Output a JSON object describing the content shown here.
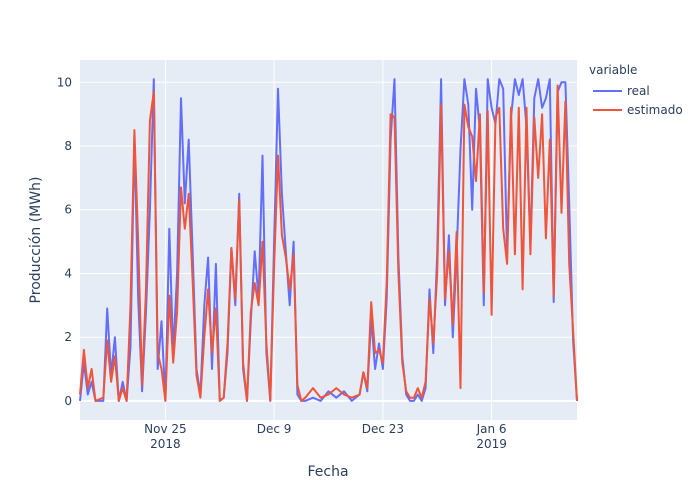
{
  "chart_data": {
    "type": "line",
    "xlabel": "Fecha",
    "ylabel": "Producción (MWh)",
    "ylim": [
      -0.6,
      10.7
    ],
    "y_ticks": [
      0,
      2,
      4,
      6,
      8,
      10
    ],
    "x_range": [
      "2018-11-14",
      "2019-01-17"
    ],
    "x_ticks": [
      {
        "date": "2018-11-25",
        "label": "Nov 25",
        "year": "2018"
      },
      {
        "date": "2018-12-09",
        "label": "Dec 9",
        "year": ""
      },
      {
        "date": "2018-12-23",
        "label": "Dec 23",
        "year": ""
      },
      {
        "date": "2019-01-06",
        "label": "Jan 6",
        "year": "2019"
      }
    ],
    "grid": true,
    "legend": {
      "title": "variable",
      "placement": "right"
    },
    "series": [
      {
        "name": "real",
        "color": "#636efa",
        "points": [
          [
            "2018-11-14",
            0.0
          ],
          [
            "2018-11-14 12:00",
            1.2
          ],
          [
            "2018-11-15",
            0.2
          ],
          [
            "2018-11-15 12:00",
            0.6
          ],
          [
            "2018-11-16",
            0.0
          ],
          [
            "2018-11-17",
            0.0
          ],
          [
            "2018-11-17 12:00",
            2.9
          ],
          [
            "2018-11-18",
            0.8
          ],
          [
            "2018-11-18 12:00",
            2.0
          ],
          [
            "2018-11-19",
            0.0
          ],
          [
            "2018-11-19 12:00",
            0.6
          ],
          [
            "2018-11-20",
            0.0
          ],
          [
            "2018-11-20 12:00",
            1.7
          ],
          [
            "2018-11-21",
            8.3
          ],
          [
            "2018-11-21 12:00",
            3.2
          ],
          [
            "2018-11-22",
            0.3
          ],
          [
            "2018-11-22 12:00",
            2.8
          ],
          [
            "2018-11-23",
            6.0
          ],
          [
            "2018-11-23 12:00",
            10.1
          ],
          [
            "2018-11-24",
            1.0
          ],
          [
            "2018-11-24 12:00",
            2.5
          ],
          [
            "2018-11-25",
            0.0
          ],
          [
            "2018-11-25 12:00",
            5.4
          ],
          [
            "2018-11-26",
            1.5
          ],
          [
            "2018-11-26 12:00",
            4.0
          ],
          [
            "2018-11-27",
            9.5
          ],
          [
            "2018-11-27 12:00",
            6.2
          ],
          [
            "2018-11-28",
            8.2
          ],
          [
            "2018-11-28 12:00",
            4.7
          ],
          [
            "2018-11-29",
            1.0
          ],
          [
            "2018-11-29 12:00",
            0.2
          ],
          [
            "2018-11-30",
            3.0
          ],
          [
            "2018-11-30 12:00",
            4.5
          ],
          [
            "2018-12-01",
            1.0
          ],
          [
            "2018-12-01 12:00",
            4.3
          ],
          [
            "2018-12-02",
            0.0
          ],
          [
            "2018-12-02 12:00",
            0.1
          ],
          [
            "2018-12-03",
            1.5
          ],
          [
            "2018-12-03 12:00",
            4.8
          ],
          [
            "2018-12-04",
            3.0
          ],
          [
            "2018-12-04 12:00",
            6.5
          ],
          [
            "2018-12-05",
            1.0
          ],
          [
            "2018-12-05 12:00",
            0.0
          ],
          [
            "2018-12-06",
            2.5
          ],
          [
            "2018-12-06 12:00",
            4.7
          ],
          [
            "2018-12-07",
            3.2
          ],
          [
            "2018-12-07 12:00",
            7.7
          ],
          [
            "2018-12-08",
            1.5
          ],
          [
            "2018-12-08 12:00",
            0.0
          ],
          [
            "2018-12-09",
            5.0
          ],
          [
            "2018-12-09 12:00",
            9.8
          ],
          [
            "2018-12-10",
            6.5
          ],
          [
            "2018-12-10 12:00",
            4.7
          ],
          [
            "2018-12-11",
            3.0
          ],
          [
            "2018-12-11 12:00",
            5.0
          ],
          [
            "2018-12-12",
            0.2
          ],
          [
            "2018-12-12 12:00",
            0.0
          ],
          [
            "2018-12-13",
            0.0
          ],
          [
            "2018-12-14",
            0.1
          ],
          [
            "2018-12-15",
            0.0
          ],
          [
            "2018-12-16",
            0.3
          ],
          [
            "2018-12-17",
            0.1
          ],
          [
            "2018-12-18",
            0.3
          ],
          [
            "2018-12-19",
            0.0
          ],
          [
            "2018-12-20",
            0.2
          ],
          [
            "2018-12-20 12:00",
            0.9
          ],
          [
            "2018-12-21",
            0.3
          ],
          [
            "2018-12-21 12:00",
            2.6
          ],
          [
            "2018-12-22",
            1.0
          ],
          [
            "2018-12-22 12:00",
            1.8
          ],
          [
            "2018-12-23",
            1.0
          ],
          [
            "2018-12-23 12:00",
            3.2
          ],
          [
            "2018-12-24",
            8.2
          ],
          [
            "2018-12-24 12:00",
            10.1
          ],
          [
            "2018-12-25",
            4.5
          ],
          [
            "2018-12-25 12:00",
            1.4
          ],
          [
            "2018-12-26",
            0.2
          ],
          [
            "2018-12-26 12:00",
            0.0
          ],
          [
            "2018-12-27",
            0.0
          ],
          [
            "2018-12-27 12:00",
            0.2
          ],
          [
            "2018-12-28",
            0.0
          ],
          [
            "2018-12-28 12:00",
            0.4
          ],
          [
            "2018-12-29",
            3.5
          ],
          [
            "2018-12-29 12:00",
            1.5
          ],
          [
            "2018-12-30",
            4.6
          ],
          [
            "2018-12-30 12:00",
            10.1
          ],
          [
            "2018-12-31",
            3.0
          ],
          [
            "2018-12-31 12:00",
            5.2
          ],
          [
            "2019-01-01",
            2.0
          ],
          [
            "2019-01-01 12:00",
            4.6
          ],
          [
            "2019-01-02",
            7.9
          ],
          [
            "2019-01-02 12:00",
            10.1
          ],
          [
            "2019-01-03",
            9.3
          ],
          [
            "2019-01-03 12:00",
            6.0
          ],
          [
            "2019-01-04",
            9.8
          ],
          [
            "2019-01-04 12:00",
            8.5
          ],
          [
            "2019-01-05",
            3.0
          ],
          [
            "2019-01-05 12:00",
            10.1
          ],
          [
            "2019-01-06",
            9.2
          ],
          [
            "2019-01-06 12:00",
            8.7
          ],
          [
            "2019-01-07",
            10.1
          ],
          [
            "2019-01-07 12:00",
            9.8
          ],
          [
            "2019-01-08",
            4.6
          ],
          [
            "2019-01-08 12:00",
            8.9
          ],
          [
            "2019-01-09",
            10.1
          ],
          [
            "2019-01-09 12:00",
            9.6
          ],
          [
            "2019-01-10",
            10.1
          ],
          [
            "2019-01-10 12:00",
            8.6
          ],
          [
            "2019-01-11",
            4.9
          ],
          [
            "2019-01-11 12:00",
            9.5
          ],
          [
            "2019-01-12",
            10.1
          ],
          [
            "2019-01-12 12:00",
            9.2
          ],
          [
            "2019-01-13",
            9.5
          ],
          [
            "2019-01-13 12:00",
            10.1
          ],
          [
            "2019-01-14",
            3.1
          ],
          [
            "2019-01-14 12:00",
            9.7
          ],
          [
            "2019-01-15",
            10.0
          ],
          [
            "2019-01-15 12:00",
            10.0
          ],
          [
            "2019-01-16",
            6.2
          ],
          [
            "2019-01-16 12:00",
            1.9
          ],
          [
            "2019-01-17",
            0.0
          ]
        ]
      },
      {
        "name": "estimado",
        "color": "#ef553b",
        "points": [
          [
            "2018-11-14",
            0.2
          ],
          [
            "2018-11-14 12:00",
            1.6
          ],
          [
            "2018-11-15",
            0.4
          ],
          [
            "2018-11-15 12:00",
            1.0
          ],
          [
            "2018-11-16",
            0.0
          ],
          [
            "2018-11-17",
            0.1
          ],
          [
            "2018-11-17 12:00",
            1.9
          ],
          [
            "2018-11-18",
            0.6
          ],
          [
            "2018-11-18 12:00",
            1.4
          ],
          [
            "2018-11-19",
            0.0
          ],
          [
            "2018-11-19 12:00",
            0.4
          ],
          [
            "2018-11-20",
            0.0
          ],
          [
            "2018-11-20 12:00",
            3.0
          ],
          [
            "2018-11-21",
            8.5
          ],
          [
            "2018-11-21 12:00",
            5.0
          ],
          [
            "2018-11-22",
            0.5
          ],
          [
            "2018-11-22 12:00",
            3.5
          ],
          [
            "2018-11-23",
            8.8
          ],
          [
            "2018-11-23 12:00",
            9.7
          ],
          [
            "2018-11-24",
            1.5
          ],
          [
            "2018-11-24 12:00",
            1.0
          ],
          [
            "2018-11-25",
            0.0
          ],
          [
            "2018-11-25 12:00",
            3.3
          ],
          [
            "2018-11-26",
            1.2
          ],
          [
            "2018-11-26 12:00",
            2.8
          ],
          [
            "2018-11-27",
            6.7
          ],
          [
            "2018-11-27 12:00",
            5.4
          ],
          [
            "2018-11-28",
            6.5
          ],
          [
            "2018-11-28 12:00",
            3.8
          ],
          [
            "2018-11-29",
            0.8
          ],
          [
            "2018-11-29 12:00",
            0.1
          ],
          [
            "2018-11-30",
            2.0
          ],
          [
            "2018-11-30 12:00",
            3.5
          ],
          [
            "2018-12-01",
            1.5
          ],
          [
            "2018-12-01 12:00",
            2.9
          ],
          [
            "2018-12-02",
            0.0
          ],
          [
            "2018-12-02 12:00",
            0.1
          ],
          [
            "2018-12-03",
            1.8
          ],
          [
            "2018-12-03 12:00",
            4.8
          ],
          [
            "2018-12-04",
            3.2
          ],
          [
            "2018-12-04 12:00",
            6.3
          ],
          [
            "2018-12-05",
            1.2
          ],
          [
            "2018-12-05 12:00",
            0.0
          ],
          [
            "2018-12-06",
            2.8
          ],
          [
            "2018-12-06 12:00",
            3.7
          ],
          [
            "2018-12-07",
            3.0
          ],
          [
            "2018-12-07 12:00",
            5.0
          ],
          [
            "2018-12-08",
            1.8
          ],
          [
            "2018-12-08 12:00",
            0.0
          ],
          [
            "2018-12-09",
            4.2
          ],
          [
            "2018-12-09 12:00",
            7.7
          ],
          [
            "2018-12-10",
            5.2
          ],
          [
            "2018-12-10 12:00",
            4.5
          ],
          [
            "2018-12-11",
            3.5
          ],
          [
            "2018-12-11 12:00",
            4.6
          ],
          [
            "2018-12-12",
            0.5
          ],
          [
            "2018-12-12 12:00",
            0.0
          ],
          [
            "2018-12-13",
            0.1
          ],
          [
            "2018-12-14",
            0.4
          ],
          [
            "2018-12-15",
            0.1
          ],
          [
            "2018-12-16",
            0.2
          ],
          [
            "2018-12-17",
            0.4
          ],
          [
            "2018-12-18",
            0.2
          ],
          [
            "2018-12-19",
            0.1
          ],
          [
            "2018-12-20",
            0.2
          ],
          [
            "2018-12-20 12:00",
            0.9
          ],
          [
            "2018-12-21",
            0.4
          ],
          [
            "2018-12-21 12:00",
            3.1
          ],
          [
            "2018-12-22",
            1.5
          ],
          [
            "2018-12-22 12:00",
            1.6
          ],
          [
            "2018-12-23",
            1.2
          ],
          [
            "2018-12-23 12:00",
            3.7
          ],
          [
            "2018-12-24",
            9.0
          ],
          [
            "2018-12-24 12:00",
            8.9
          ],
          [
            "2018-12-25",
            4.0
          ],
          [
            "2018-12-25 12:00",
            1.2
          ],
          [
            "2018-12-26",
            0.3
          ],
          [
            "2018-12-26 12:00",
            0.1
          ],
          [
            "2018-12-27",
            0.1
          ],
          [
            "2018-12-27 12:00",
            0.4
          ],
          [
            "2018-12-28",
            0.1
          ],
          [
            "2018-12-28 12:00",
            0.6
          ],
          [
            "2018-12-29",
            3.2
          ],
          [
            "2018-12-29 12:00",
            1.8
          ],
          [
            "2018-12-30",
            4.0
          ],
          [
            "2018-12-30 12:00",
            9.3
          ],
          [
            "2018-12-31",
            3.2
          ],
          [
            "2018-12-31 12:00",
            4.7
          ],
          [
            "2019-01-01",
            2.4
          ],
          [
            "2019-01-01 12:00",
            5.3
          ],
          [
            "2019-01-02",
            0.4
          ],
          [
            "2019-01-02 12:00",
            9.3
          ],
          [
            "2019-01-03",
            8.6
          ],
          [
            "2019-01-03 12:00",
            8.3
          ],
          [
            "2019-01-04",
            6.9
          ],
          [
            "2019-01-04 12:00",
            9.0
          ],
          [
            "2019-01-05",
            3.4
          ],
          [
            "2019-01-05 12:00",
            9.1
          ],
          [
            "2019-01-06",
            2.7
          ],
          [
            "2019-01-06 12:00",
            8.9
          ],
          [
            "2019-01-07",
            9.2
          ],
          [
            "2019-01-07 12:00",
            5.4
          ],
          [
            "2019-01-08",
            4.3
          ],
          [
            "2019-01-08 12:00",
            9.2
          ],
          [
            "2019-01-09",
            4.6
          ],
          [
            "2019-01-09 12:00",
            9.2
          ],
          [
            "2019-01-10",
            3.5
          ],
          [
            "2019-01-10 12:00",
            9.2
          ],
          [
            "2019-01-11",
            4.6
          ],
          [
            "2019-01-11 12:00",
            8.9
          ],
          [
            "2019-01-12",
            7.0
          ],
          [
            "2019-01-12 12:00",
            9.0
          ],
          [
            "2019-01-13",
            5.1
          ],
          [
            "2019-01-13 12:00",
            8.2
          ],
          [
            "2019-01-14",
            3.3
          ],
          [
            "2019-01-14 12:00",
            9.9
          ],
          [
            "2019-01-15",
            5.9
          ],
          [
            "2019-01-15 12:00",
            9.4
          ],
          [
            "2019-01-16",
            4.3
          ],
          [
            "2019-01-16 12:00",
            2.2
          ],
          [
            "2019-01-17",
            0.0
          ]
        ]
      }
    ]
  }
}
